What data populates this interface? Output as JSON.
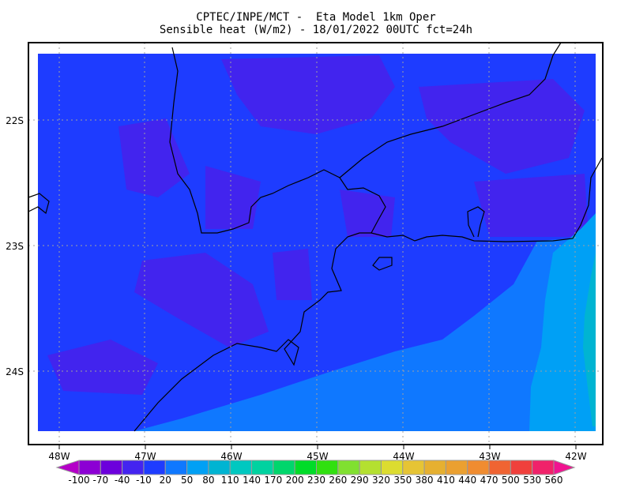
{
  "header": {
    "line1": "CPTEC/INPE/MCT -  Eta Model 1km Oper",
    "line2": "Sensible heat (W/m2) - 18/01/2022 00UTC fct=24h"
  },
  "map": {
    "lon_labels": [
      "48W",
      "47W",
      "46W",
      "45W",
      "44W",
      "43W",
      "42W"
    ],
    "lat_labels": [
      "22S",
      "23S",
      "24S"
    ],
    "field_colors": {
      "land_purple": "#4224ee",
      "base": "#1e3cff",
      "ocean_mid": "#0f78ff",
      "ocean_light": "#00a0f5",
      "ocean_cyan": "#00b4d2"
    }
  },
  "colorbar": {
    "labels": [
      "-100",
      "-70",
      "-40",
      "-10",
      "20",
      "50",
      "80",
      "110",
      "140",
      "170",
      "200",
      "230",
      "260",
      "290",
      "320",
      "350",
      "380",
      "410",
      "440",
      "470",
      "500",
      "530",
      "560"
    ],
    "colors": [
      "#8c00d4",
      "#6c00dc",
      "#4424f0",
      "#1e3cff",
      "#0f78ff",
      "#00a0f5",
      "#00b4d2",
      "#00c8c0",
      "#00d2a0",
      "#00d66c",
      "#00dc28",
      "#30e010",
      "#80e030",
      "#b4e030",
      "#dcdc30",
      "#e6c434",
      "#e6b030",
      "#eba030",
      "#f08c30",
      "#f06432",
      "#f0403c",
      "#f0226a"
    ],
    "under_color": "#b400c8",
    "over_color": "#f01490"
  }
}
